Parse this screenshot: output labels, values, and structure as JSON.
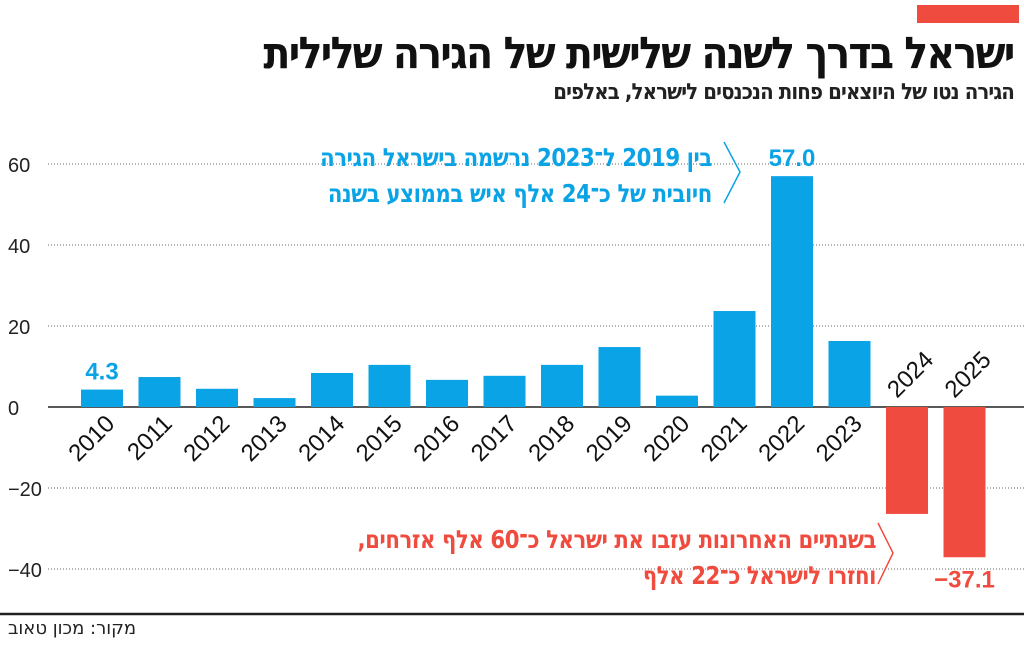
{
  "title": "ישראל בדרך לשנה שלישית של הגירה שלילית",
  "subtitle": "הגירה נטו של היוצאים פחות הנכנסים לישראל, באלפים",
  "source": "מקור: מכון טאוב",
  "colors": {
    "positive": "#0aa3e6",
    "negative": "#f04b3f",
    "accent": "#f04b3f"
  },
  "annotations": {
    "positive": [
      "בין 2019 ל־2023 נרשמה בישראל הגירה",
      "חיובית של כ־24 אלף איש בממוצע בשנה"
    ],
    "negative": [
      "בשנתיים האחרונות עזבו את ישראל כ־60 אלף אזרחים,",
      "וחזרו לישראל כ־22 אלף"
    ]
  },
  "chart_data": {
    "type": "bar",
    "title": "ישראל בדרך לשנה שלישית של הגירה שלילית",
    "categories": [
      "2010",
      "2011",
      "2012",
      "2013",
      "2014",
      "2015",
      "2016",
      "2017",
      "2018",
      "2019",
      "2020",
      "2021",
      "2022",
      "2023",
      "2024",
      "2025"
    ],
    "values": [
      4.3,
      7.4,
      4.5,
      2.2,
      8.4,
      10.4,
      6.7,
      7.7,
      10.4,
      14.8,
      2.8,
      23.7,
      57.0,
      16.3,
      -26.4,
      -37.1
    ],
    "data_labels": {
      "2010": "4.3",
      "2022": "57.0",
      "2025": "-37.1"
    },
    "yticks": [
      60,
      40,
      20,
      0,
      -20,
      -40
    ],
    "ytick_labels": [
      "60",
      "40",
      "20",
      "0",
      "−20",
      "−40"
    ],
    "ylim": [
      -45,
      65
    ],
    "grid": true,
    "xlabel": "",
    "ylabel": ""
  }
}
